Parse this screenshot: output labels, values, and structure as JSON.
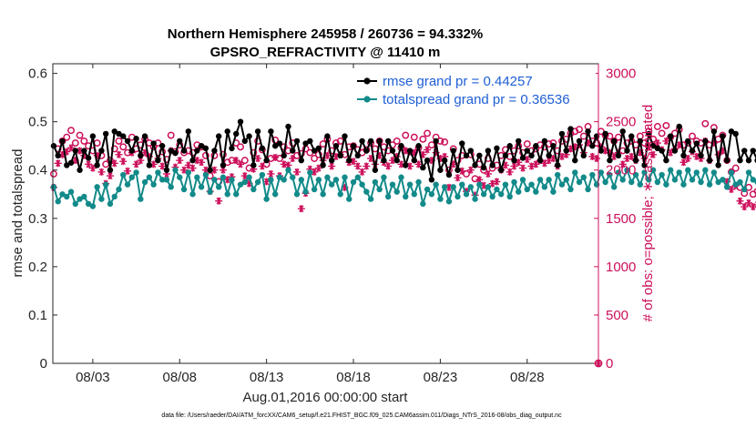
{
  "title": "Northern Hemisphere 245958 / 260736 = 94.332%",
  "subtitle": "GPSRO_REFRACTIVITY @ 11410 m",
  "footer": "data file: /Users/raeder/DAI/ATM_forcXX/CAM6_setup/f.e21.FHIST_BGC.f09_025.CAM6assim.011/Diags_NTrS_2016-08/obs_diag_output.nc",
  "colors": {
    "rmse": "#000000",
    "spread": "#138a8a",
    "obs": "#cc0f5a",
    "legend_text": "#1f5fd6",
    "axis": "#262626"
  },
  "chart_data": {
    "type": "line",
    "xlabel": "Aug.01,2016 00:00:00 start",
    "ylabel": "rmse and totalspread",
    "y2label": "# of obs: o=possible; ∗=assimilated",
    "xlim": [
      0.7,
      32.1
    ],
    "ylim": [
      0,
      0.62
    ],
    "y2lim": [
      0,
      3100
    ],
    "x_ticks": [
      {
        "x": 3,
        "label": "08/03"
      },
      {
        "x": 8,
        "label": "08/08"
      },
      {
        "x": 13,
        "label": "08/13"
      },
      {
        "x": 18,
        "label": "08/18"
      },
      {
        "x": 23,
        "label": "08/23"
      },
      {
        "x": 28,
        "label": "08/28"
      }
    ],
    "y_ticks": [
      "0",
      "0.1",
      "0.2",
      "0.3",
      "0.4",
      "0.5",
      "0.6"
    ],
    "y2_ticks": [
      "0",
      "500",
      "1000",
      "1500",
      "2000",
      "2500",
      "3000"
    ],
    "legend": {
      "placement": "top-right",
      "entries": [
        "rmse grand pr = 0.44257",
        "totalspread grand pr = 0.36536"
      ]
    },
    "x_start": 0.75,
    "x_step": 0.25,
    "series": [
      {
        "name": "rmse",
        "axis": "left",
        "values": [
          0.45,
          0.43,
          0.46,
          0.41,
          0.415,
          0.44,
          0.4,
          0.44,
          0.425,
          0.47,
          0.41,
          0.44,
          0.475,
          0.4,
          0.48,
          0.475,
          0.47,
          0.46,
          0.44,
          0.465,
          0.43,
          0.47,
          0.41,
          0.455,
          0.42,
          0.45,
          0.4,
          0.44,
          0.435,
          0.46,
          0.44,
          0.48,
          0.42,
          0.44,
          0.45,
          0.445,
          0.4,
          0.44,
          0.47,
          0.41,
          0.48,
          0.445,
          0.475,
          0.5,
          0.46,
          0.47,
          0.41,
          0.48,
          0.445,
          0.42,
          0.48,
          0.45,
          0.455,
          0.43,
          0.49,
          0.44,
          0.46,
          0.42,
          0.455,
          0.46,
          0.44,
          0.445,
          0.41,
          0.47,
          0.42,
          0.45,
          0.43,
          0.47,
          0.42,
          0.45,
          0.43,
          0.46,
          0.44,
          0.46,
          0.4,
          0.46,
          0.42,
          0.46,
          0.44,
          0.42,
          0.45,
          0.41,
          0.44,
          0.42,
          0.45,
          0.405,
          0.42,
          0.38,
          0.46,
          0.4,
          0.42,
          0.39,
          0.44,
          0.4,
          0.455,
          0.43,
          0.44,
          0.41,
          0.43,
          0.405,
          0.44,
          0.41,
          0.445,
          0.4,
          0.43,
          0.45,
          0.42,
          0.46,
          0.425,
          0.44,
          0.43,
          0.45,
          0.42,
          0.46,
          0.43,
          0.45,
          0.41,
          0.475,
          0.44,
          0.485,
          0.42,
          0.46,
          0.43,
          0.48,
          0.45,
          0.47,
          0.44,
          0.475,
          0.42,
          0.46,
          0.43,
          0.48,
          0.44,
          0.47,
          0.42,
          0.46,
          0.41,
          0.475,
          0.45,
          0.445,
          0.44,
          0.42,
          0.47,
          0.44,
          0.49,
          0.43,
          0.46,
          0.44,
          0.455,
          0.43,
          0.46,
          0.42,
          0.48,
          0.41,
          0.47,
          0.42,
          0.48,
          0.475,
          0.42,
          0.44,
          0.42,
          0.44,
          0.42,
          0.405
        ]
      },
      {
        "name": "totalspread",
        "axis": "left",
        "values": [
          0.365,
          0.335,
          0.35,
          0.345,
          0.355,
          0.33,
          0.34,
          0.345,
          0.33,
          0.325,
          0.365,
          0.34,
          0.37,
          0.33,
          0.345,
          0.36,
          0.39,
          0.37,
          0.385,
          0.395,
          0.34,
          0.375,
          0.385,
          0.37,
          0.395,
          0.38,
          0.38,
          0.365,
          0.4,
          0.385,
          0.36,
          0.395,
          0.35,
          0.385,
          0.365,
          0.39,
          0.355,
          0.38,
          0.365,
          0.385,
          0.35,
          0.38,
          0.35,
          0.37,
          0.375,
          0.385,
          0.36,
          0.375,
          0.39,
          0.34,
          0.38,
          0.35,
          0.385,
          0.38,
          0.4,
          0.385,
          0.35,
          0.38,
          0.355,
          0.395,
          0.36,
          0.38,
          0.35,
          0.385,
          0.37,
          0.38,
          0.35,
          0.385,
          0.34,
          0.375,
          0.385,
          0.37,
          0.355,
          0.34,
          0.375,
          0.36,
          0.385,
          0.345,
          0.37,
          0.355,
          0.385,
          0.345,
          0.37,
          0.35,
          0.375,
          0.33,
          0.36,
          0.35,
          0.37,
          0.34,
          0.365,
          0.335,
          0.365,
          0.345,
          0.37,
          0.35,
          0.365,
          0.34,
          0.37,
          0.35,
          0.365,
          0.345,
          0.36,
          0.35,
          0.37,
          0.345,
          0.375,
          0.355,
          0.38,
          0.36,
          0.37,
          0.355,
          0.38,
          0.365,
          0.38,
          0.355,
          0.39,
          0.37,
          0.38,
          0.36,
          0.395,
          0.375,
          0.385,
          0.36,
          0.39,
          0.37,
          0.395,
          0.375,
          0.39,
          0.365,
          0.395,
          0.38,
          0.4,
          0.375,
          0.39,
          0.37,
          0.395,
          0.38,
          0.4,
          0.375,
          0.39,
          0.37,
          0.4,
          0.38,
          0.395,
          0.37,
          0.4,
          0.38,
          0.395,
          0.375,
          0.4,
          0.37,
          0.395,
          0.375,
          0.38,
          0.365,
          0.395,
          0.37,
          0.375,
          0.36,
          0.395,
          0.38,
          0.375
        ]
      },
      {
        "name": "possible",
        "axis": "right",
        "marker": "circle",
        "values": [
          1960,
          2220,
          2300,
          2340,
          2410,
          2280,
          2360,
          2300,
          2250,
          2200,
          2280,
          2150,
          2060,
          2100,
          2220,
          2300,
          2240,
          2180,
          2340,
          2220,
          2260,
          2320,
          2280,
          2240,
          2280,
          2190,
          2110,
          2360,
          2190,
          2260,
          2180,
          2200,
          2180,
          2260,
          2240,
          2150,
          1940,
          2150,
          1880,
          2160,
          2080,
          2100,
          2280,
          2240,
          2100,
          2020,
          2180,
          2300,
          2210,
          2060,
          2120,
          2310,
          2120,
          2240,
          2200,
          2280,
          2150,
          2170,
          2220,
          2180,
          2120,
          2160,
          2270,
          2320,
          2200,
          2280,
          2300,
          2160,
          2240,
          2250,
          2210,
          2180,
          2210,
          2280,
          2220,
          2300,
          2240,
          2200,
          2260,
          2300,
          2230,
          2360,
          2190,
          2340,
          2230,
          2320,
          2380,
          2260,
          2340,
          2300,
          2290,
          2000,
          2220,
          2100,
          2150,
          1960,
          2160,
          1910,
          2060,
          2000,
          2120,
          2020,
          2050,
          2150,
          2210,
          2140,
          2200,
          2250,
          2180,
          2270,
          2200,
          2220,
          2260,
          2240,
          2270,
          2280,
          2200,
          2300,
          2320,
          2380,
          2400,
          2420,
          2350,
          2450,
          2300,
          2280,
          2400,
          2360,
          2350,
          2300,
          2340,
          2200,
          2280,
          2300,
          2260,
          2350,
          2280,
          2400,
          2320,
          2450,
          2380,
          2460,
          2340,
          2380,
          2420,
          2260,
          2280,
          2350,
          2300,
          2280,
          2480,
          2260,
          2440,
          2320,
          2360,
          2100,
          1980,
          2020,
          1820,
          1760,
          1820,
          1750,
          1780,
          1720,
          1760,
          1720
        ]
      },
      {
        "name": "assimilated",
        "axis": "right",
        "marker": "star",
        "values": [
          1820,
          2070,
          2160,
          2190,
          2230,
          2100,
          2200,
          2150,
          2060,
          2020,
          2150,
          1980,
          1860,
          1940,
          2070,
          2160,
          2090,
          1990,
          2180,
          2060,
          2100,
          2180,
          2140,
          2060,
          2120,
          2040,
          1960,
          2200,
          2030,
          2100,
          2000,
          2050,
          2020,
          2100,
          2080,
          2000,
          1780,
          2000,
          1680,
          2000,
          1900,
          1930,
          2100,
          2060,
          1940,
          1860,
          2010,
          2120,
          2040,
          1880,
          1960,
          2130,
          1940,
          2060,
          2050,
          2120,
          1980,
          1600,
          1760,
          2010,
          1980,
          2020,
          2100,
          2150,
          2040,
          2140,
          2160,
          1820,
          2080,
          2090,
          2040,
          1980,
          2040,
          2120,
          2060,
          2150,
          2080,
          2040,
          2100,
          2140,
          2060,
          2200,
          2040,
          2180,
          2060,
          2160,
          2210,
          2100,
          2180,
          2120,
          2140,
          1820,
          2060,
          1920,
          1990,
          1780,
          2000,
          1740,
          1900,
          1840,
          1960,
          1860,
          1880,
          2000,
          2050,
          1980,
          2040,
          2080,
          2020,
          2110,
          2040,
          2060,
          2100,
          2070,
          2100,
          2120,
          2040,
          2140,
          2160,
          2220,
          2240,
          2260,
          2180,
          2280,
          2140,
          2120,
          2240,
          2200,
          2180,
          2140,
          2180,
          2060,
          2120,
          2140,
          2100,
          2180,
          2120,
          2240,
          2160,
          2280,
          2210,
          2300,
          2180,
          2220,
          2260,
          2080,
          2120,
          2190,
          2140,
          2120,
          2300,
          2100,
          2280,
          2160,
          2200,
          1880,
          1800,
          1840,
          1680,
          1620,
          1660,
          1620,
          1640,
          1580,
          1620,
          1580
        ]
      }
    ],
    "endpoint_markers": [
      {
        "name": "possible",
        "x": 32.1,
        "y": 0
      },
      {
        "name": "assimilated",
        "x": 32.1,
        "y": 0
      }
    ]
  }
}
